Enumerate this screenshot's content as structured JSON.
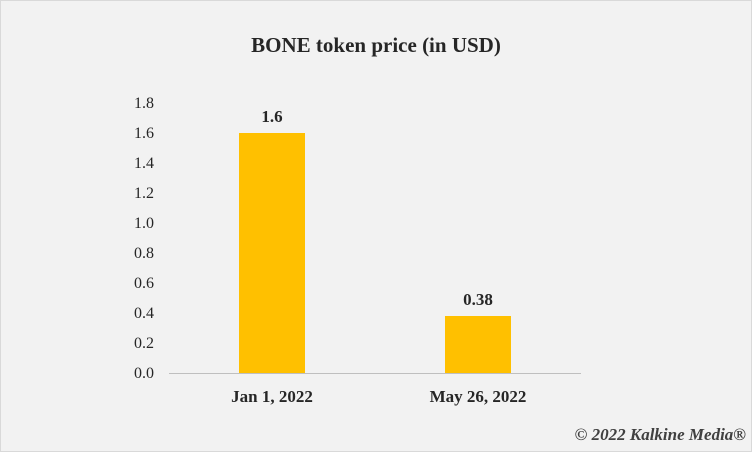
{
  "chart_data": {
    "type": "bar",
    "title": "BONE token price (in USD)",
    "xlabel": "",
    "ylabel": "",
    "categories": [
      "Jan 1, 2022",
      "May 26, 2022"
    ],
    "values": [
      1.6,
      0.38
    ],
    "data_labels": [
      "1.6",
      "0.38"
    ],
    "yticks": [
      "0.0",
      "0.2",
      "0.4",
      "0.6",
      "0.8",
      "1.0",
      "1.2",
      "1.4",
      "1.6",
      "1.8"
    ],
    "ylim": [
      0,
      1.8
    ],
    "grid": false,
    "legend": "none",
    "bar_color": "#ffc000"
  },
  "footer": {
    "copyright": "© 2022 Kalkine Media®"
  },
  "colors": {
    "background": "#f2f2f2",
    "bar": "#ffc000",
    "axis": "#bfbfbf",
    "text": "#262626"
  }
}
